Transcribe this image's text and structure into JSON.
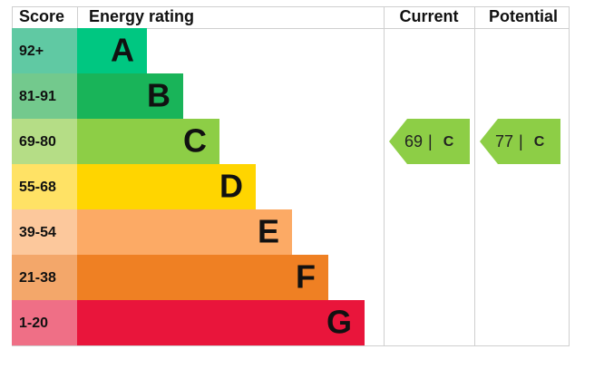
{
  "header": {
    "score": "Score",
    "rating": "Energy rating",
    "current": "Current",
    "potential": "Potential"
  },
  "bands": [
    {
      "score": "92+",
      "letter": "A",
      "color": "#00c781",
      "score_color": "#60c9a3"
    },
    {
      "score": "81-91",
      "letter": "B",
      "color": "#19b459",
      "score_color": "#73c98d"
    },
    {
      "score": "69-80",
      "letter": "C",
      "color": "#8dce46",
      "score_color": "#b5dd86"
    },
    {
      "score": "55-68",
      "letter": "D",
      "color": "#ffd500",
      "score_color": "#ffe265"
    },
    {
      "score": "39-54",
      "letter": "E",
      "color": "#fcaa65",
      "score_color": "#fcc89c"
    },
    {
      "score": "21-38",
      "letter": "F",
      "color": "#ef8023",
      "score_color": "#f3a76a"
    },
    {
      "score": "1-20",
      "letter": "G",
      "color": "#e9153b",
      "score_color": "#ef6f86"
    }
  ],
  "current": {
    "value": 69,
    "separator": "|",
    "letter": "C"
  },
  "potential": {
    "value": 77,
    "separator": "|",
    "letter": "C"
  }
}
